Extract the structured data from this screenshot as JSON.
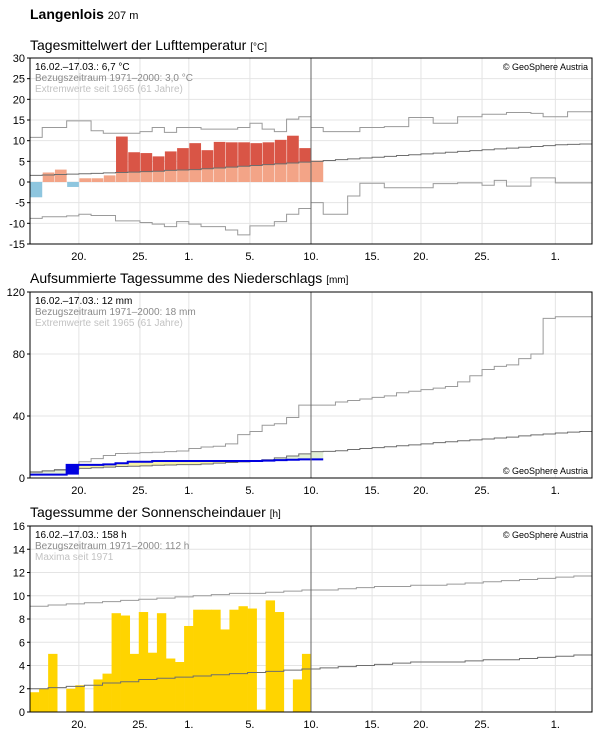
{
  "station": {
    "name": "Langenlois",
    "elevation": "207 m"
  },
  "chart_data": [
    {
      "type": "bar",
      "title": "Tagesmittelwert der Lufttemperatur",
      "unit": "[°C]",
      "info": [
        "16.02.–17.03.: 6,7 °C",
        "Bezugszeitraum 1971–2000: 3,0 °C",
        "Extremwerte seit 1965 (61 Jahre)"
      ],
      "copyright": "© GeoSphere Austria",
      "ylim": [
        -15,
        30
      ],
      "yticks": [
        "30",
        "25",
        "20",
        "15",
        "10",
        "5",
        "0",
        "-5",
        "-10",
        "-15"
      ],
      "xticks": [
        "20.",
        "25.",
        "1.",
        "5.",
        "10.",
        "15.",
        "20.",
        "25.",
        "1."
      ],
      "values": [
        -3.7,
        2.3,
        3.0,
        -1.2,
        0.9,
        0.9,
        1.6,
        11.0,
        7.2,
        7.0,
        6.2,
        7.4,
        8.2,
        9.4,
        7.7,
        9.7,
        9.6,
        9.6,
        9.4,
        9.6,
        10.2,
        11.2,
        8.2,
        5.2
      ],
      "normal": [
        1.6,
        1.7,
        1.8,
        1.9,
        2.0,
        2.1,
        2.2,
        2.3,
        2.4,
        2.5,
        2.6,
        2.8,
        2.9,
        3.0,
        3.2,
        3.4,
        3.6,
        3.8,
        4.0,
        4.2,
        4.4,
        4.6,
        4.8,
        5.0,
        5.2,
        5.4,
        5.6,
        5.8,
        6.0,
        6.2,
        6.4,
        6.6,
        6.8,
        7.0,
        7.2,
        7.4,
        7.6,
        7.8,
        8.0,
        8.2,
        8.4,
        8.6,
        8.8,
        9.0,
        9.1,
        9.2
      ],
      "max": [
        10.8,
        13.2,
        13.2,
        14.8,
        14.8,
        12.4,
        11.8,
        11.8,
        11.8,
        12.2,
        13.2,
        12.0,
        13.2,
        13.2,
        12.8,
        12.8,
        12.8,
        13.2,
        14.2,
        12.8,
        12.2,
        15.2,
        15.8,
        13.2,
        12.2,
        12.2,
        12.2,
        13.2,
        13.2,
        13.4,
        13.4,
        15.6,
        15.6,
        14.2,
        14.2,
        15.8,
        15.8,
        16.4,
        16.4,
        16.8,
        16.8,
        16.6,
        15.8,
        15.8,
        17.0,
        17.0
      ],
      "min": [
        -8.8,
        -8.4,
        -8.4,
        -8.2,
        -7.8,
        -8.1,
        -8.1,
        -9.4,
        -9.4,
        -9.8,
        -10.2,
        -10.8,
        -9.6,
        -10.2,
        -10.8,
        -10.8,
        -11.6,
        -12.8,
        -10.6,
        -10.6,
        -9.6,
        -7.8,
        -6.4,
        -5.0,
        -7.8,
        -7.8,
        -3.4,
        -0.3,
        -0.3,
        -1.4,
        -1.4,
        -1.4,
        -1.4,
        -0.4,
        -0.4,
        -0.2,
        -0.2,
        -0.8,
        0.4,
        -1.0,
        -1.0,
        1.0,
        1.0,
        -0.2,
        -0.2,
        -0.2
      ]
    },
    {
      "type": "area",
      "title": "Aufsummierte Tagessumme des Niederschlags",
      "unit": "[mm]",
      "info": [
        "16.02.–17.03.: 12 mm",
        "Bezugszeitraum 1971–2000: 18 mm",
        "Extremwerte seit 1965 (61 Jahre)"
      ],
      "copyright": "© GeoSphere Austria",
      "ylim": [
        0,
        120
      ],
      "yticks": [
        "120",
        "80",
        "40",
        "0"
      ],
      "xticks": [
        "20.",
        "25.",
        "1.",
        "5.",
        "10.",
        "15.",
        "20.",
        "25.",
        "1."
      ],
      "values": [
        2.2,
        2.2,
        2.2,
        8.5,
        8.5,
        8.5,
        8.8,
        9.5,
        10.5,
        10.5,
        11.0,
        11.0,
        11.0,
        11.0,
        11.0,
        11.0,
        11.0,
        11.0,
        11.0,
        11.2,
        11.5,
        11.8,
        12.0,
        12.0
      ],
      "normal": [
        3.8,
        4.6,
        5.4,
        5.8,
        6.2,
        6.6,
        7.0,
        7.4,
        7.6,
        7.8,
        8.2,
        8.4,
        8.6,
        8.6,
        9.0,
        9.6,
        10.0,
        10.4,
        11.2,
        11.8,
        13.0,
        14.2,
        15.6,
        17.0,
        17.2,
        17.6,
        18.4,
        19.0,
        19.6,
        20.2,
        20.8,
        21.4,
        22.0,
        22.8,
        23.4,
        24.0,
        24.6,
        25.2,
        25.8,
        26.4,
        27.2,
        27.8,
        28.4,
        29.0,
        29.6,
        30.0
      ],
      "max": [
        4.0,
        4.6,
        5.0,
        5.6,
        10.5,
        12.5,
        14.5,
        15.8,
        16.0,
        16.4,
        16.6,
        17.0,
        17.4,
        19.0,
        20.0,
        20.5,
        22.0,
        28.0,
        30.0,
        34.0,
        35.0,
        39.0,
        47.0,
        47.0,
        47.0,
        49.0,
        50.0,
        51.0,
        52.0,
        53.0,
        55.0,
        56.0,
        57.0,
        58.0,
        59.0,
        62.0,
        66.0,
        70.0,
        72.0,
        73.0,
        77.0,
        80.0,
        103.0,
        104.0,
        104.0,
        104.0
      ]
    },
    {
      "type": "bar",
      "title": "Tagessumme der Sonnenscheindauer",
      "unit": "[h]",
      "info": [
        "16.02.–17.03.: 158 h",
        "Bezugszeitraum 1971–2000: 112 h",
        "Maxima seit 1971"
      ],
      "copyright": "© GeoSphere Austria",
      "ylim": [
        0,
        16
      ],
      "yticks": [
        "16",
        "14",
        "12",
        "10",
        "8",
        "6",
        "4",
        "2",
        "0"
      ],
      "xticks": [
        "20.",
        "25.",
        "1.",
        "5.",
        "10.",
        "15.",
        "20.",
        "25.",
        "1."
      ],
      "values": [
        1.7,
        2.0,
        5.0,
        0.0,
        2.0,
        2.3,
        0.0,
        2.8,
        3.3,
        8.5,
        8.3,
        5.0,
        8.6,
        5.1,
        8.5,
        4.6,
        4.3,
        7.4,
        8.8,
        8.8,
        8.8,
        7.1,
        8.8,
        9.1,
        8.9,
        0.2,
        9.6,
        8.6,
        0.0,
        2.8,
        5.0
      ],
      "normal": [
        2.0,
        2.1,
        2.2,
        2.3,
        2.5,
        2.6,
        2.8,
        2.9,
        3.0,
        3.1,
        3.2,
        3.3,
        3.4,
        3.5,
        3.6,
        3.7,
        3.8,
        3.9,
        4.0,
        4.1,
        4.2,
        4.3,
        4.3,
        4.3,
        4.4,
        4.5,
        4.5,
        4.6,
        4.7,
        4.8,
        4.9
      ],
      "max": [
        9.1,
        9.2,
        9.3,
        9.4,
        9.5,
        9.6,
        9.7,
        9.8,
        9.9,
        10.0,
        10.1,
        10.2,
        10.2,
        10.3,
        10.4,
        10.5,
        10.5,
        10.6,
        10.7,
        10.8,
        10.8,
        10.9,
        10.9,
        11.0,
        11.1,
        11.2,
        11.3,
        11.4,
        11.5,
        11.6,
        11.7
      ]
    }
  ],
  "colors": {
    "warm": "#f3a487",
    "hot": "#d95546",
    "cold": "#8ec6df",
    "precip_obs": "#0000e0",
    "precip_deficit": "#e2efd6",
    "precip_surplus": "#f6f3a6",
    "sun": "#ffd400",
    "grid": "#e4e4e4",
    "envelope": "#9a9a9a",
    "normal": "#6e6e6e"
  }
}
